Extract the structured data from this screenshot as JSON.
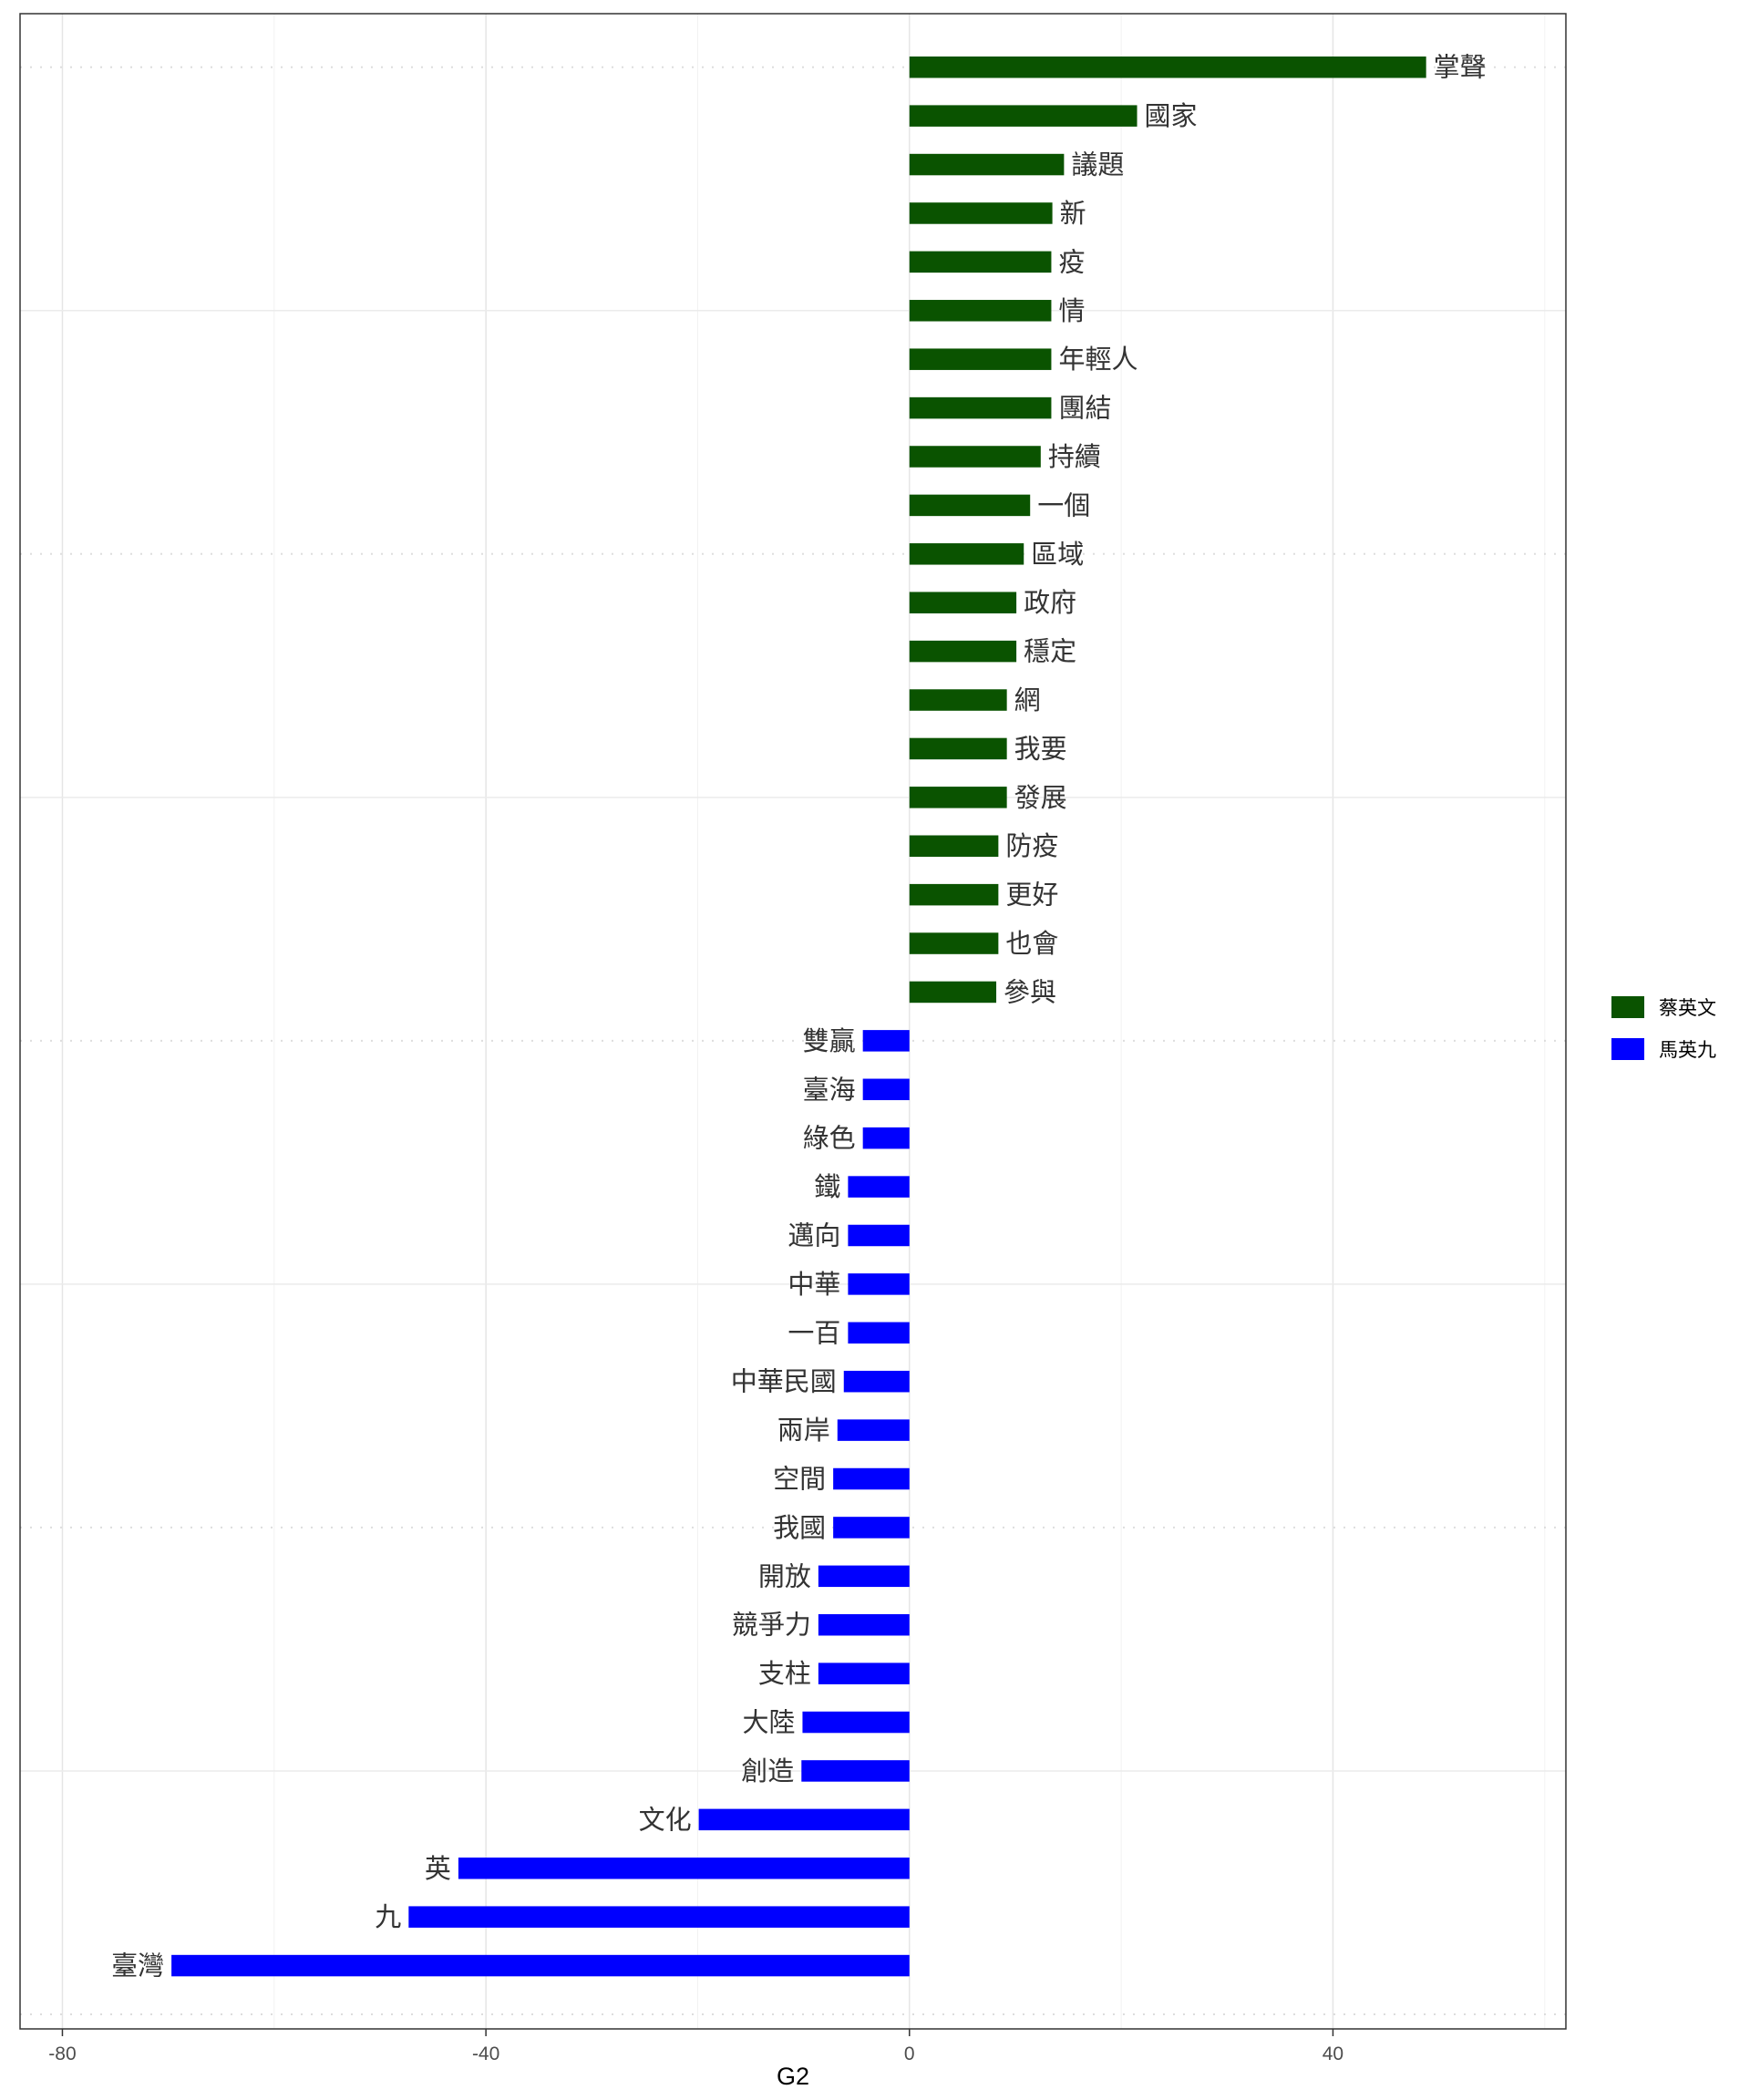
{
  "chart_data": {
    "type": "bar",
    "orientation": "horizontal",
    "xlabel": "G2",
    "ylabel": "",
    "xlim": [
      -84,
      62
    ],
    "x_ticks": [
      -80,
      -40,
      0,
      40
    ],
    "grid": true,
    "legend_position": "right",
    "series": [
      {
        "name": "蔡英文",
        "color": "#0a5300",
        "categories": [
          "掌聲",
          "國家",
          "議題",
          "新",
          "疫",
          "情",
          "年輕人",
          "團結",
          "持續",
          "一個",
          "區域",
          "政府",
          "穩定",
          "網",
          "我要",
          "發展",
          "防疫",
          "更好",
          "也會",
          "參與"
        ],
        "values": [
          48.8,
          21.5,
          14.6,
          13.5,
          13.4,
          13.4,
          13.4,
          13.4,
          12.4,
          11.4,
          10.8,
          10.1,
          10.1,
          9.2,
          9.2,
          9.2,
          8.4,
          8.4,
          8.4,
          8.2
        ]
      },
      {
        "name": "馬英九",
        "color": "#0000ff",
        "categories": [
          "雙贏",
          "臺海",
          "綠色",
          "鐵",
          "邁向",
          "中華",
          "一百",
          "中華民國",
          "兩岸",
          "空間",
          "我國",
          "開放",
          "競爭力",
          "支柱",
          "大陸",
          "創造",
          "文化",
          "英",
          "九",
          "臺灣"
        ],
        "values": [
          -4.4,
          -4.4,
          -4.4,
          -5.8,
          -5.8,
          -5.8,
          -5.8,
          -6.2,
          -6.8,
          -7.2,
          -7.2,
          -8.6,
          -8.6,
          -8.6,
          -10.1,
          -10.2,
          -19.9,
          -42.6,
          -47.3,
          -69.7
        ]
      }
    ]
  }
}
